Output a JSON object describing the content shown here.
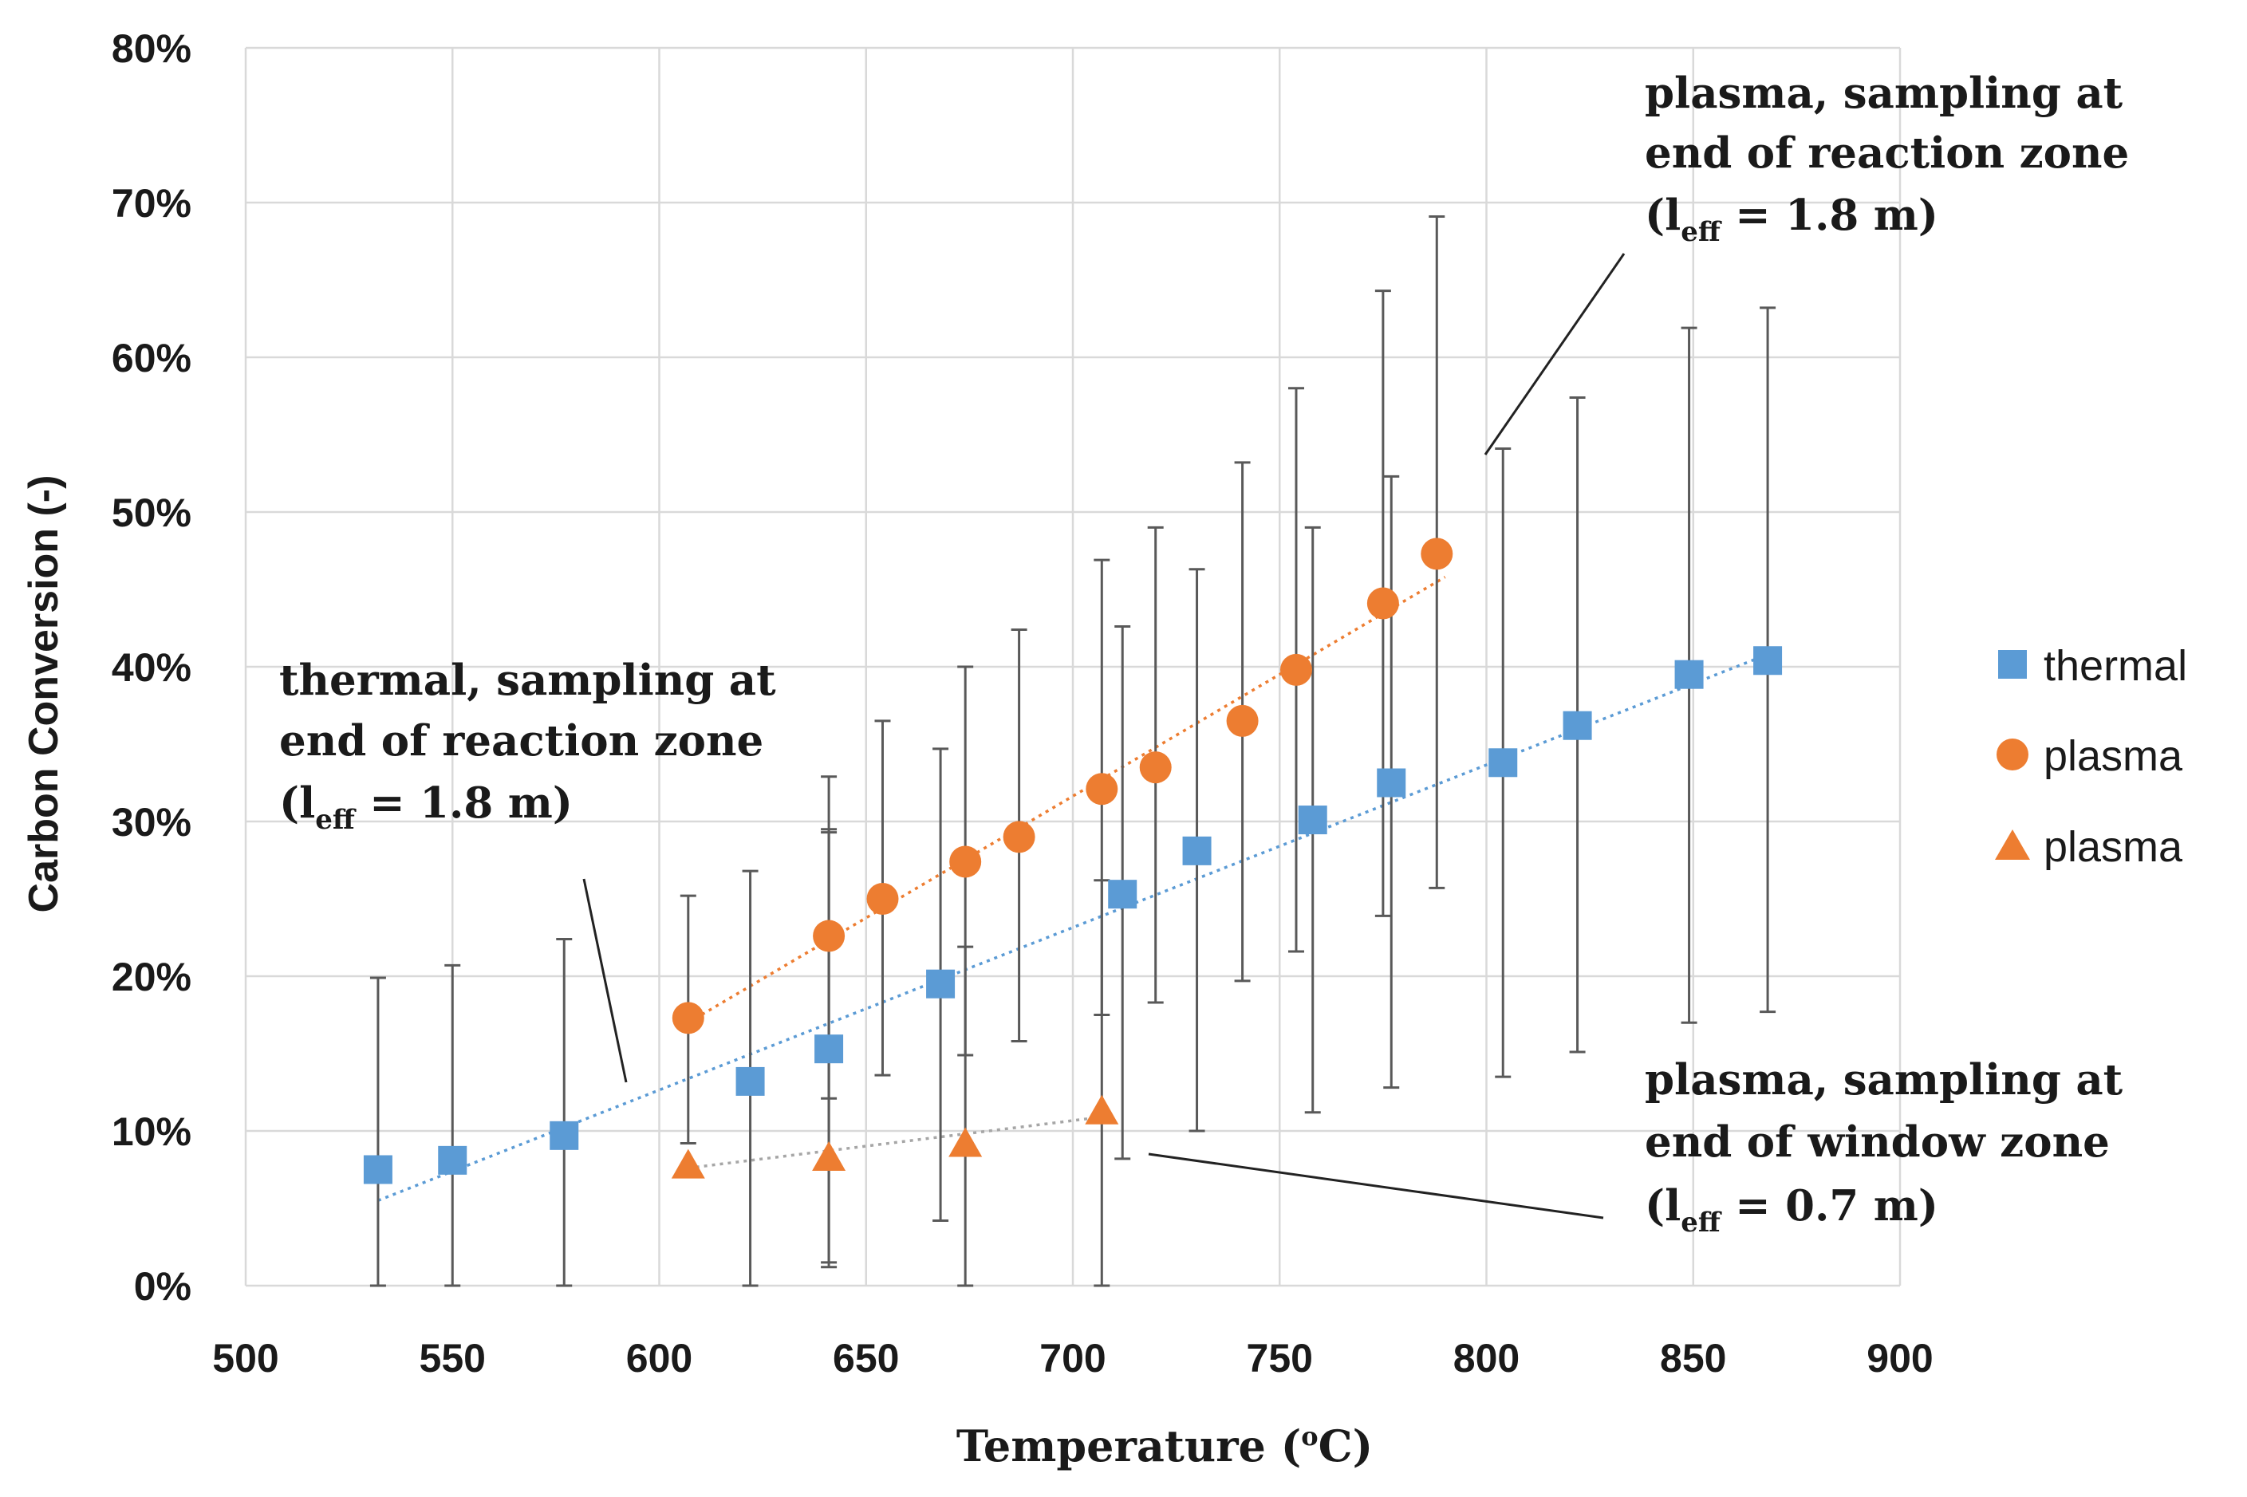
{
  "chart_data": {
    "type": "scatter",
    "xlabel_main": "Temperature (",
    "xlabel_sup": "o",
    "xlabel_end": "C)",
    "ylabel": "Carbon Conversion (-)",
    "xlim": [
      500,
      900
    ],
    "ylim": [
      0,
      0.8
    ],
    "x_ticks": [
      "500",
      "550",
      "600",
      "650",
      "700",
      "750",
      "800",
      "850",
      "900"
    ],
    "y_ticks": [
      "0%",
      "10%",
      "20%",
      "30%",
      "40%",
      "50%",
      "60%",
      "70%",
      "80%"
    ],
    "grid": true,
    "legend_position": "right",
    "series": [
      {
        "name": "thermal",
        "marker": "square",
        "color": "#5b9bd5",
        "points": [
          {
            "x": 532,
            "y": 0.075,
            "err_low": 0.0,
            "err_high": 0.199
          },
          {
            "x": 550,
            "y": 0.081,
            "err_low": 0.0,
            "err_high": 0.207
          },
          {
            "x": 577,
            "y": 0.097,
            "err_low": 0.0,
            "err_high": 0.224
          },
          {
            "x": 622,
            "y": 0.132,
            "err_low": 0.0,
            "err_high": 0.268
          },
          {
            "x": 641,
            "y": 0.153,
            "err_low": 0.015,
            "err_high": 0.293
          },
          {
            "x": 668,
            "y": 0.195,
            "err_low": 0.042,
            "err_high": 0.347
          },
          {
            "x": 712,
            "y": 0.253,
            "err_low": 0.082,
            "err_high": 0.426
          },
          {
            "x": 730,
            "y": 0.281,
            "err_low": 0.1,
            "err_high": 0.463
          },
          {
            "x": 758,
            "y": 0.301,
            "err_low": 0.112,
            "err_high": 0.49
          },
          {
            "x": 777,
            "y": 0.325,
            "err_low": 0.128,
            "err_high": 0.523
          },
          {
            "x": 804,
            "y": 0.338,
            "err_low": 0.135,
            "err_high": 0.541
          },
          {
            "x": 822,
            "y": 0.362,
            "err_low": 0.151,
            "err_high": 0.574
          },
          {
            "x": 849,
            "y": 0.395,
            "err_low": 0.17,
            "err_high": 0.619
          },
          {
            "x": 868,
            "y": 0.404,
            "err_low": 0.177,
            "err_high": 0.632
          }
        ],
        "trend": {
          "x1": 532,
          "y1": 0.055,
          "x2": 868,
          "y2": 0.408
        }
      },
      {
        "name": "plasma",
        "marker": "circle",
        "color": "#ed7d31",
        "points": [
          {
            "x": 607,
            "y": 0.173,
            "err_low": 0.092,
            "err_high": 0.252
          },
          {
            "x": 641,
            "y": 0.226,
            "err_low": 0.121,
            "err_high": 0.329
          },
          {
            "x": 654,
            "y": 0.25,
            "err_low": 0.136,
            "err_high": 0.365
          },
          {
            "x": 674,
            "y": 0.274,
            "err_low": 0.149,
            "err_high": 0.4
          },
          {
            "x": 687,
            "y": 0.29,
            "err_low": 0.158,
            "err_high": 0.424
          },
          {
            "x": 707,
            "y": 0.321,
            "err_low": 0.175,
            "err_high": 0.469
          },
          {
            "x": 720,
            "y": 0.335,
            "err_low": 0.183,
            "err_high": 0.49
          },
          {
            "x": 741,
            "y": 0.365,
            "err_low": 0.197,
            "err_high": 0.532
          },
          {
            "x": 754,
            "y": 0.398,
            "err_low": 0.216,
            "err_high": 0.58
          },
          {
            "x": 775,
            "y": 0.441,
            "err_low": 0.239,
            "err_high": 0.643
          },
          {
            "x": 788,
            "y": 0.473,
            "err_low": 0.257,
            "err_high": 0.691
          }
        ],
        "trend": {
          "x1": 607,
          "y1": 0.17,
          "x2": 790,
          "y2": 0.458
        }
      },
      {
        "name": "plasma",
        "marker": "triangle",
        "color": "#ed7d31",
        "points": [
          {
            "x": 607,
            "y": 0.078,
            "err_low": 0.0,
            "err_high": 0.0
          },
          {
            "x": 641,
            "y": 0.083,
            "err_low": 0.012,
            "err_high": 0.295
          },
          {
            "x": 674,
            "y": 0.092,
            "err_low": 0.0,
            "err_high": 0.219
          },
          {
            "x": 707,
            "y": 0.113,
            "err_low": 0.0,
            "err_high": 0.262
          }
        ],
        "trend": {
          "x1": 607,
          "y1": 0.076,
          "x2": 707,
          "y2": 0.109
        }
      }
    ],
    "annotations": [
      {
        "name": "annotation-plasma-reaction-zone",
        "lines": [
          "plasma, sampling at",
          "end of reaction zone"
        ],
        "leff_prefix": "(l",
        "leff_sub": "eff",
        "leff_suffix": " = 1.8 m)"
      },
      {
        "name": "annotation-thermal-reaction-zone",
        "lines": [
          "thermal, sampling at",
          "end of reaction zone"
        ],
        "leff_prefix": "(l",
        "leff_sub": "eff",
        "leff_suffix": " = 1.8 m)"
      },
      {
        "name": "annotation-plasma-window-zone",
        "lines": [
          "plasma, sampling at",
          "end of window zone"
        ],
        "leff_prefix": "(l",
        "leff_sub": "eff",
        "leff_suffix": " = 0.7 m)"
      }
    ]
  }
}
